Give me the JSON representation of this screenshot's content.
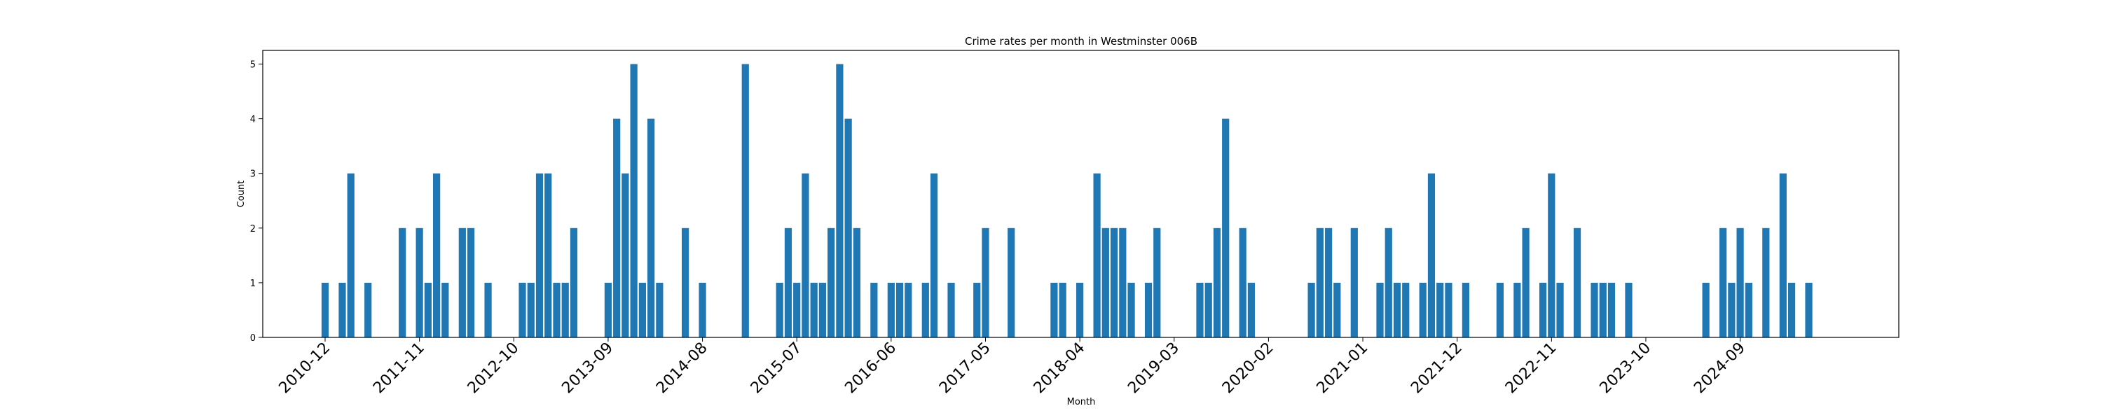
{
  "chart_data": {
    "type": "bar",
    "title": "Crime rates per month in Westminster 006B",
    "xlabel": "Month",
    "ylabel": "Count",
    "ylim": [
      0,
      5.25
    ],
    "yticks": [
      0,
      1,
      2,
      3,
      4,
      5
    ],
    "x_ticks": [
      "2010-12",
      "2011-11",
      "2012-10",
      "2013-09",
      "2014-08",
      "2015-07",
      "2016-06",
      "2017-05",
      "2018-04",
      "2019-03",
      "2020-02",
      "2021-01",
      "2021-12",
      "2022-11",
      "2023-10",
      "2024-09"
    ],
    "grid": false,
    "bar_color": "#1f77b4",
    "categories": [
      "2010-12",
      "2011-02",
      "2011-03",
      "2011-05",
      "2011-09",
      "2011-11",
      "2011-12",
      "2012-01",
      "2012-02",
      "2012-04",
      "2012-05",
      "2012-07",
      "2012-11",
      "2012-12",
      "2013-01",
      "2013-02",
      "2013-03",
      "2013-04",
      "2013-05",
      "2013-09",
      "2013-10",
      "2013-11",
      "2013-12",
      "2014-01",
      "2014-02",
      "2014-03",
      "2014-06",
      "2014-08",
      "2015-01",
      "2015-05",
      "2015-06",
      "2015-07",
      "2015-08",
      "2015-09",
      "2015-10",
      "2015-11",
      "2015-12",
      "2016-01",
      "2016-02",
      "2016-04",
      "2016-06",
      "2016-07",
      "2016-08",
      "2016-10",
      "2016-11",
      "2017-01",
      "2017-04",
      "2017-05",
      "2017-08",
      "2018-01",
      "2018-02",
      "2018-04",
      "2018-06",
      "2018-07",
      "2018-08",
      "2018-09",
      "2018-10",
      "2018-12",
      "2019-01",
      "2019-06",
      "2019-07",
      "2019-08",
      "2019-09",
      "2019-11",
      "2019-12",
      "2020-07",
      "2020-08",
      "2020-09",
      "2020-10",
      "2020-12",
      "2021-03",
      "2021-04",
      "2021-05",
      "2021-06",
      "2021-08",
      "2021-09",
      "2021-10",
      "2021-11",
      "2022-01",
      "2022-05",
      "2022-07",
      "2022-08",
      "2022-10",
      "2022-11",
      "2022-12",
      "2023-02",
      "2023-04",
      "2023-05",
      "2023-06",
      "2023-08",
      "2024-05",
      "2024-07",
      "2024-08",
      "2024-09",
      "2024-10",
      "2024-12",
      "2025-02",
      "2025-03",
      "2025-05"
    ],
    "values": [
      1,
      1,
      3,
      1,
      2,
      2,
      1,
      3,
      1,
      2,
      2,
      1,
      1,
      1,
      3,
      3,
      1,
      1,
      2,
      1,
      4,
      3,
      5,
      1,
      4,
      1,
      2,
      1,
      5,
      1,
      2,
      1,
      3,
      1,
      1,
      2,
      5,
      4,
      2,
      1,
      1,
      1,
      1,
      1,
      3,
      1,
      1,
      2,
      2,
      1,
      1,
      1,
      3,
      2,
      2,
      2,
      1,
      1,
      2,
      1,
      1,
      2,
      4,
      2,
      1,
      1,
      2,
      2,
      1,
      2,
      1,
      2,
      1,
      1,
      1,
      3,
      1,
      1,
      1,
      1,
      1,
      2,
      1,
      3,
      1,
      2,
      1,
      1,
      1,
      1,
      1,
      2,
      1,
      2,
      1,
      2,
      3,
      1,
      1
    ]
  }
}
